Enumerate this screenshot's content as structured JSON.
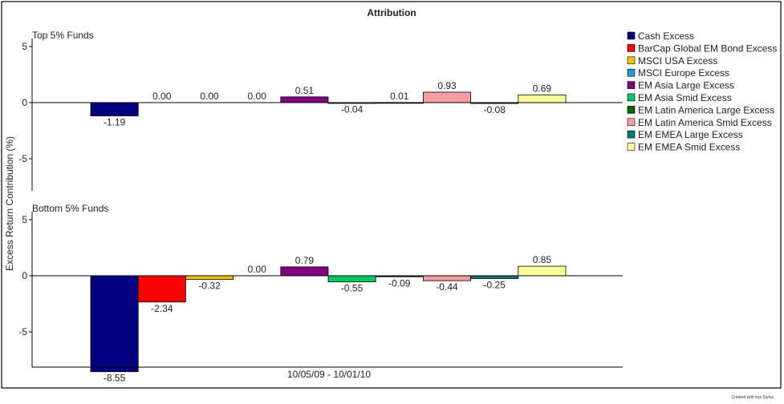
{
  "chart_data": {
    "type": "bar",
    "title": "Attribution",
    "ylabel": "Excess Return Contribution (%)",
    "xlabel": "10/05/09 - 10/01/10",
    "footer": "Created with mpi Stylus",
    "ylim": [
      -8.5,
      5
    ],
    "yticks": [
      5,
      0,
      -5
    ],
    "legend_position": "right",
    "series": [
      {
        "name": "Cash Excess",
        "color": "#000080"
      },
      {
        "name": "BarCap Global EM Bond Excess",
        "color": "#ff0000"
      },
      {
        "name": "MSCI USA Excess",
        "color": "#f5c400"
      },
      {
        "name": "MSCI Europe Excess",
        "color": "#1f9bd1"
      },
      {
        "name": "EM Asia Large Excess",
        "color": "#800080"
      },
      {
        "name": "EM Asia Smid Excess",
        "color": "#00c864"
      },
      {
        "name": "EM Latin America Large Excess",
        "color": "#006400"
      },
      {
        "name": "EM Latin America Smid Excess",
        "color": "#f4a0a0"
      },
      {
        "name": "EM EMEA Large Excess",
        "color": "#007b7b"
      },
      {
        "name": "EM EMEA Smid Excess",
        "color": "#ffff99"
      }
    ],
    "panels": [
      {
        "name": "Top 5% Funds",
        "values": [
          -1.19,
          0.0,
          0.0,
          0.0,
          0.51,
          -0.04,
          0.01,
          0.93,
          -0.08,
          0.69
        ],
        "labels": [
          "-1.19",
          "0.00",
          "0.00",
          "0.00",
          "0.51",
          "-0.04",
          "0.01",
          "0.93",
          "-0.08",
          "0.69"
        ]
      },
      {
        "name": "Bottom 5% Funds",
        "values": [
          -8.55,
          -2.34,
          -0.32,
          0.0,
          0.79,
          -0.55,
          -0.09,
          -0.44,
          -0.25,
          0.85
        ],
        "labels": [
          "-8.55",
          "-2.34",
          "-0.32",
          "0.00",
          "0.79",
          "-0.55",
          "-0.09",
          "-0.44",
          "-0.25",
          "0.85"
        ]
      }
    ]
  }
}
